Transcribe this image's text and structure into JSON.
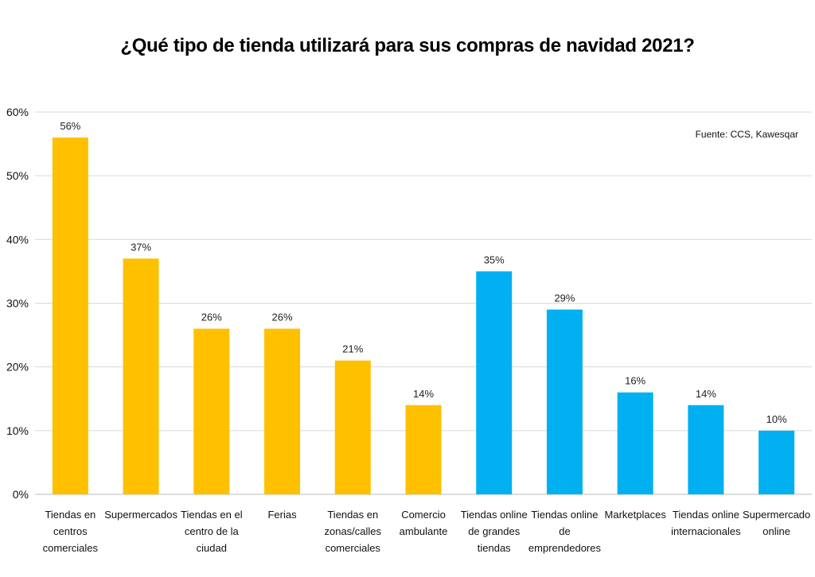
{
  "chart_data": {
    "type": "bar",
    "title": "¿Qué tipo de tienda utilizará para sus compras de navidad 2021?",
    "source": "Fuente: CCS, Kawesqar",
    "xlabel": "",
    "ylabel": "",
    "ylim": [
      0,
      60
    ],
    "yticks": [
      "0%",
      "10%",
      "20%",
      "30%",
      "40%",
      "50%",
      "60%"
    ],
    "grid": true,
    "categories": [
      [
        "Tiendas en",
        "centros",
        "comerciales"
      ],
      [
        "Supermercados"
      ],
      [
        "Tiendas en el",
        "centro de la",
        "ciudad"
      ],
      [
        "Ferias"
      ],
      [
        "Tiendas en",
        "zonas/calles",
        "comerciales"
      ],
      [
        "Comercio",
        "ambulante"
      ],
      [
        "Tiendas online",
        "de grandes",
        "tiendas"
      ],
      [
        "Tiendas online",
        "de",
        "emprendedores"
      ],
      [
        "Marketplaces"
      ],
      [
        "Tiendas online",
        "internacionales"
      ],
      [
        "Supermercado",
        "online"
      ]
    ],
    "values": [
      56,
      37,
      26,
      26,
      21,
      14,
      35,
      29,
      16,
      14,
      10
    ],
    "data_labels": [
      "56%",
      "37%",
      "26%",
      "26%",
      "21%",
      "14%",
      "35%",
      "29%",
      "16%",
      "14%",
      "10%"
    ],
    "bar_colors": [
      "#FFC000",
      "#FFC000",
      "#FFC000",
      "#FFC000",
      "#FFC000",
      "#FFC000",
      "#00B0F0",
      "#00B0F0",
      "#00B0F0",
      "#00B0F0",
      "#00B0F0"
    ]
  }
}
